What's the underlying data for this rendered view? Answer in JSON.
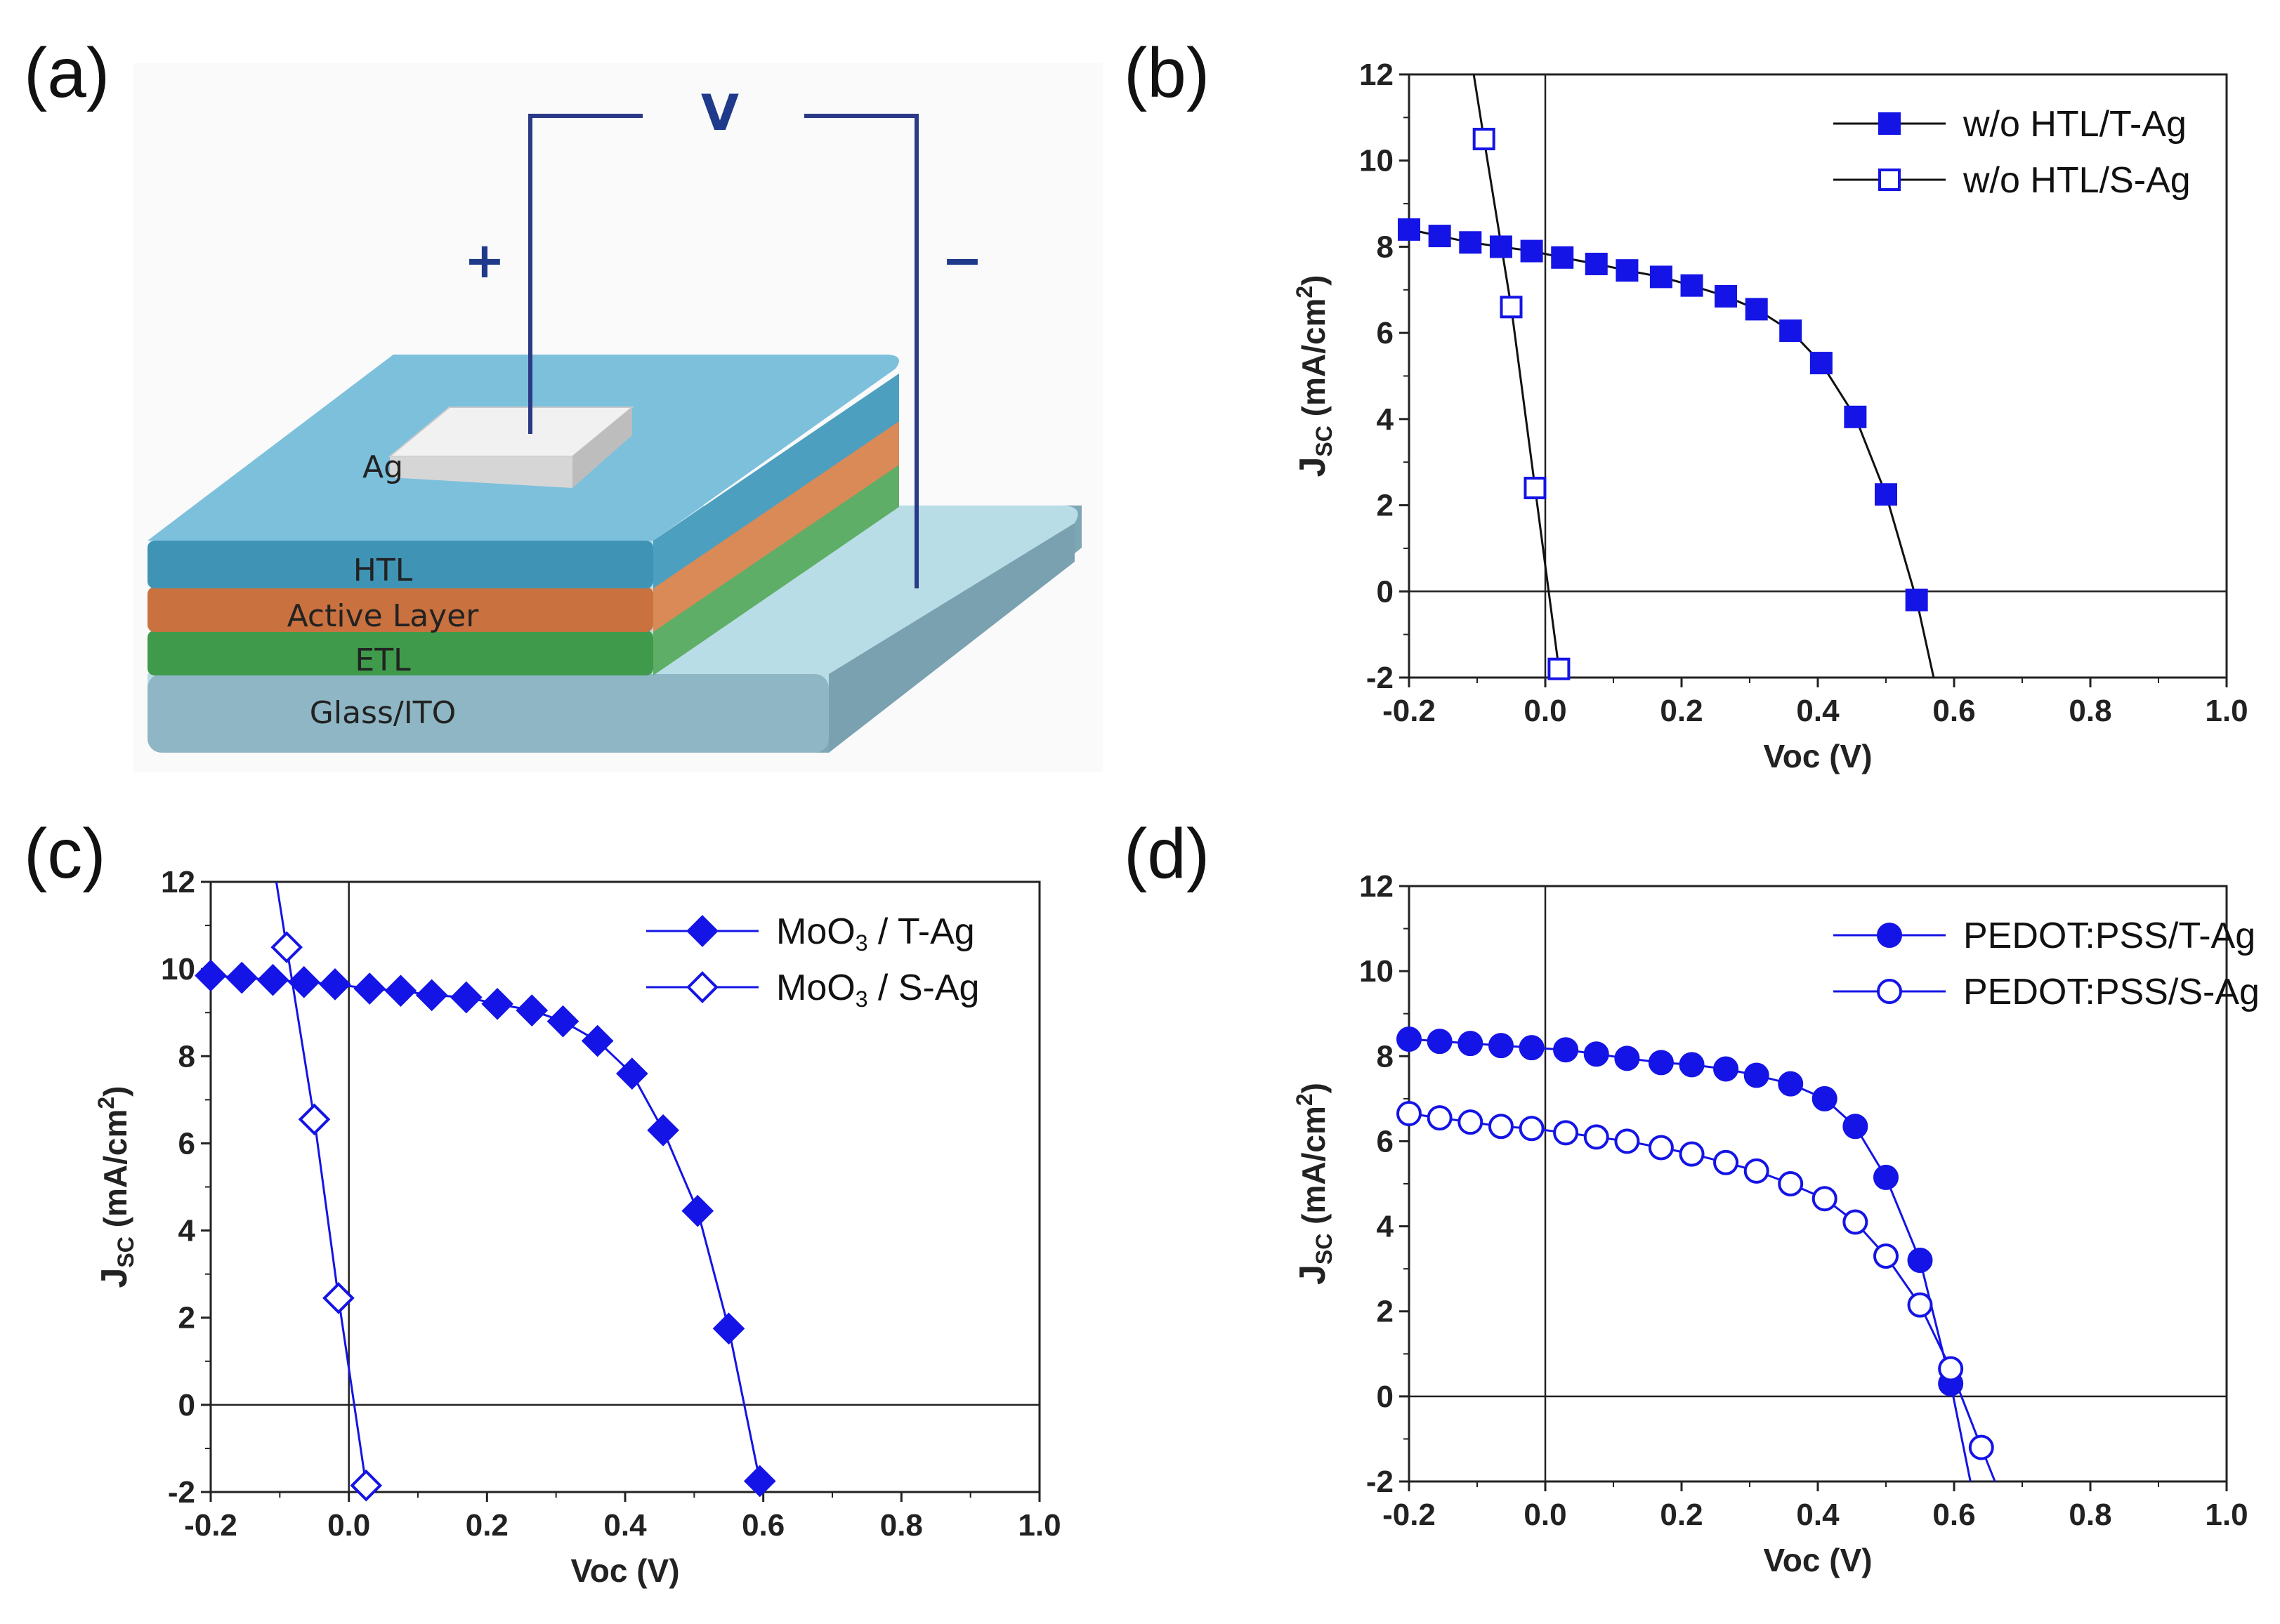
{
  "panel_labels": [
    "(a)",
    "(b)",
    "(c)",
    "(d)"
  ],
  "schematic": {
    "voltage_label": "V",
    "plus_label": "+",
    "minus_label": "−",
    "electrode_label": "Ag",
    "layers": [
      "HTL",
      "Active Layer",
      "ETL",
      "Glass/ITO"
    ],
    "colors": {
      "htl": "#5fb0cf",
      "active": "#c9713f",
      "etl": "#3f9a4b",
      "substrate": "#8fb6c4",
      "wire": "#2b3a86"
    }
  },
  "chart_data": [
    {
      "panel": "(b)",
      "type": "line",
      "xlabel": "Voc (V)",
      "ylabel_main": "J",
      "ylabel_sub": "SC",
      "ylabel_rest": " (mA/cm",
      "ylabel_sup": "2",
      "ylabel_end": ")",
      "xlim": [
        -0.2,
        1.0
      ],
      "ylim": [
        -2,
        12
      ],
      "xticks": [
        "-0.2",
        "0.0",
        "0.2",
        "0.4",
        "0.6",
        "0.8",
        "1.0"
      ],
      "yticks": [
        "-2",
        "0",
        "2",
        "4",
        "6",
        "8",
        "10",
        "12"
      ],
      "legend_position": "top-right",
      "series": [
        {
          "name": "w/o HTL/T-Ag",
          "marker": "square",
          "filled": true,
          "color": "#1414e6",
          "x": [
            -0.2,
            -0.155,
            -0.11,
            -0.065,
            -0.02,
            0.025,
            0.075,
            0.12,
            0.17,
            0.215,
            0.265,
            0.31,
            0.36,
            0.405,
            0.455,
            0.5,
            0.545
          ],
          "y": [
            8.4,
            8.25,
            8.1,
            8.0,
            7.9,
            7.75,
            7.6,
            7.45,
            7.3,
            7.1,
            6.85,
            6.55,
            6.05,
            5.3,
            4.05,
            2.25,
            -0.2
          ]
        },
        {
          "name": "w/o HTL/S-Ag",
          "marker": "square",
          "filled": false,
          "color": "#1414e6",
          "x": [
            -0.09,
            -0.05,
            -0.015,
            0.02
          ],
          "y": [
            10.5,
            6.6,
            2.4,
            -1.8
          ]
        }
      ],
      "lines": [
        {
          "x": [
            -0.105,
            -0.09,
            -0.05,
            -0.015,
            0.02,
            0.027
          ],
          "y": [
            12,
            10.5,
            6.6,
            2.4,
            -1.8,
            -2
          ]
        },
        {
          "x": [
            -0.2,
            -0.155,
            -0.11,
            -0.065,
            -0.02,
            0.025,
            0.075,
            0.12,
            0.17,
            0.215,
            0.265,
            0.31,
            0.36,
            0.405,
            0.455,
            0.5,
            0.545,
            0.57
          ],
          "y": [
            8.4,
            8.25,
            8.1,
            8.0,
            7.9,
            7.75,
            7.6,
            7.45,
            7.3,
            7.1,
            6.85,
            6.55,
            6.05,
            5.3,
            4.05,
            2.25,
            -0.2,
            -2
          ]
        }
      ]
    },
    {
      "panel": "(c)",
      "type": "line",
      "xlabel": "Voc (V)",
      "ylabel_main": "J",
      "ylabel_sub": "SC",
      "ylabel_rest": " (mA/cm",
      "ylabel_sup": "2",
      "ylabel_end": ")",
      "xlim": [
        -0.2,
        1.0
      ],
      "ylim": [
        -2,
        12
      ],
      "xticks": [
        "-0.2",
        "0.0",
        "0.2",
        "0.4",
        "0.6",
        "0.8",
        "1.0"
      ],
      "yticks": [
        "-2",
        "0",
        "2",
        "4",
        "6",
        "8",
        "10",
        "12"
      ],
      "legend_position": "top-right",
      "series": [
        {
          "name_main": "MoO",
          "name_sub": "3",
          "name_rest": " / T-Ag",
          "marker": "diamond",
          "filled": true,
          "color": "#1414e6",
          "x": [
            -0.2,
            -0.155,
            -0.11,
            -0.065,
            -0.02,
            0.03,
            0.075,
            0.12,
            0.17,
            0.215,
            0.265,
            0.31,
            0.36,
            0.41,
            0.455,
            0.505,
            0.55,
            0.595
          ],
          "y": [
            9.85,
            9.8,
            9.75,
            9.7,
            9.65,
            9.55,
            9.5,
            9.4,
            9.35,
            9.2,
            9.05,
            8.8,
            8.35,
            7.6,
            6.3,
            4.45,
            1.75,
            -1.75
          ]
        },
        {
          "name_main": "MoO",
          "name_sub": "3",
          "name_rest": " / S-Ag",
          "marker": "diamond",
          "filled": false,
          "color": "#1414e6",
          "x": [
            -0.09,
            -0.05,
            -0.015,
            0.025
          ],
          "y": [
            10.5,
            6.55,
            2.45,
            -1.85
          ]
        }
      ],
      "lines": [
        {
          "x": [
            -0.105,
            -0.09,
            -0.05,
            -0.015,
            0.025,
            0.03
          ],
          "y": [
            12,
            10.5,
            6.55,
            2.45,
            -1.85,
            -2
          ]
        },
        {
          "x": [
            -0.2,
            -0.155,
            -0.11,
            -0.065,
            -0.02,
            0.03,
            0.075,
            0.12,
            0.17,
            0.215,
            0.265,
            0.31,
            0.36,
            0.41,
            0.455,
            0.505,
            0.55,
            0.595
          ],
          "y": [
            9.85,
            9.8,
            9.75,
            9.7,
            9.65,
            9.55,
            9.5,
            9.4,
            9.35,
            9.2,
            9.05,
            8.8,
            8.35,
            7.6,
            6.3,
            4.45,
            1.75,
            -1.75
          ]
        }
      ]
    },
    {
      "panel": "(d)",
      "type": "line",
      "xlabel": "Voc (V)",
      "ylabel_main": "J",
      "ylabel_sub": "SC",
      "ylabel_rest": " (mA/cm",
      "ylabel_sup": "2",
      "ylabel_end": ")",
      "xlim": [
        -0.2,
        1.0
      ],
      "ylim": [
        -2,
        12
      ],
      "xticks": [
        "-0.2",
        "0.0",
        "0.2",
        "0.4",
        "0.6",
        "0.8",
        "1.0"
      ],
      "yticks": [
        "-2",
        "0",
        "2",
        "4",
        "6",
        "8",
        "10",
        "12"
      ],
      "legend_position": "top-right",
      "series": [
        {
          "name": "PEDOT:PSS/T-Ag",
          "marker": "circle",
          "filled": true,
          "color": "#1414e6",
          "x": [
            -0.2,
            -0.155,
            -0.11,
            -0.065,
            -0.02,
            0.03,
            0.075,
            0.12,
            0.17,
            0.215,
            0.265,
            0.31,
            0.36,
            0.41,
            0.455,
            0.5,
            0.55,
            0.595
          ],
          "y": [
            8.4,
            8.35,
            8.3,
            8.25,
            8.2,
            8.15,
            8.05,
            7.95,
            7.85,
            7.8,
            7.7,
            7.55,
            7.35,
            7.0,
            6.35,
            5.15,
            3.2,
            0.3
          ]
        },
        {
          "name": "PEDOT:PSS/S-Ag",
          "marker": "circle",
          "filled": false,
          "color": "#1414e6",
          "x": [
            -0.2,
            -0.155,
            -0.11,
            -0.065,
            -0.02,
            0.03,
            0.075,
            0.12,
            0.17,
            0.215,
            0.265,
            0.31,
            0.36,
            0.41,
            0.455,
            0.5,
            0.55,
            0.595,
            0.64
          ],
          "y": [
            6.65,
            6.55,
            6.45,
            6.35,
            6.3,
            6.2,
            6.1,
            6.0,
            5.85,
            5.7,
            5.5,
            5.3,
            5.0,
            4.65,
            4.1,
            3.3,
            2.15,
            0.65,
            -1.2
          ]
        }
      ],
      "lines": [
        {
          "x": [
            -0.2,
            -0.155,
            -0.11,
            -0.065,
            -0.02,
            0.03,
            0.075,
            0.12,
            0.17,
            0.215,
            0.265,
            0.31,
            0.36,
            0.41,
            0.455,
            0.5,
            0.55,
            0.595,
            0.624
          ],
          "y": [
            8.4,
            8.35,
            8.3,
            8.25,
            8.2,
            8.15,
            8.05,
            7.95,
            7.85,
            7.8,
            7.7,
            7.55,
            7.35,
            7.0,
            6.35,
            5.15,
            3.2,
            0.3,
            -2
          ]
        },
        {
          "x": [
            -0.2,
            -0.155,
            -0.11,
            -0.065,
            -0.02,
            0.03,
            0.075,
            0.12,
            0.17,
            0.215,
            0.265,
            0.31,
            0.36,
            0.41,
            0.455,
            0.5,
            0.55,
            0.595,
            0.64,
            0.66
          ],
          "y": [
            6.65,
            6.55,
            6.45,
            6.35,
            6.3,
            6.2,
            6.1,
            6.0,
            5.85,
            5.7,
            5.5,
            5.3,
            5.0,
            4.65,
            4.1,
            3.3,
            2.15,
            0.65,
            -1.2,
            -2
          ]
        }
      ]
    }
  ]
}
